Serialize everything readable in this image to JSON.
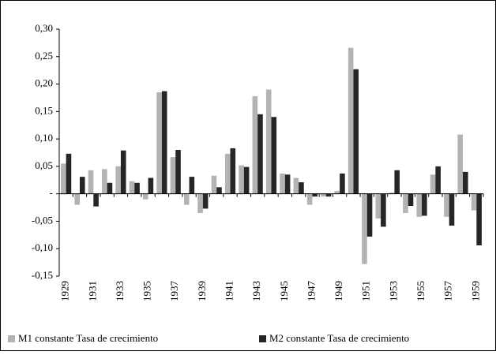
{
  "chart_data": {
    "type": "bar",
    "categories": [
      "1929",
      null,
      "1931",
      null,
      "1933",
      null,
      "1935",
      null,
      "1937",
      null,
      "1939",
      null,
      "1941",
      null,
      "1943",
      null,
      "1945",
      null,
      "1947",
      null,
      "1949",
      null,
      "1951",
      null,
      "1953",
      null,
      "1955",
      null,
      "1957",
      null,
      "1959"
    ],
    "series": [
      {
        "name": "M1 constante Tasa de crecimiento",
        "color": "#b3b3b3",
        "values": [
          0.055,
          -0.02,
          0.043,
          0.045,
          0.05,
          0.023,
          -0.01,
          0.185,
          0.067,
          -0.02,
          -0.035,
          0.033,
          0.073,
          0.052,
          0.178,
          0.19,
          0.037,
          0.029,
          -0.02,
          -0.005,
          0.005,
          0.266,
          -0.128,
          -0.045,
          0.002,
          -0.035,
          -0.042,
          0.035,
          -0.042,
          0.108,
          -0.03
        ]
      },
      {
        "name": "M2 constante Tasa de crecimiento",
        "color": "#262626",
        "values": [
          0.073,
          0.031,
          -0.023,
          0.02,
          0.079,
          0.02,
          0.029,
          0.187,
          0.08,
          0.031,
          -0.027,
          0.012,
          0.083,
          0.049,
          0.145,
          0.14,
          0.035,
          0.021,
          -0.005,
          -0.005,
          0.037,
          0.227,
          -0.078,
          -0.06,
          0.043,
          -0.022,
          -0.04,
          0.05,
          -0.058,
          0.04,
          -0.094
        ]
      }
    ],
    "ylim": [
      -0.15,
      0.3
    ],
    "yticks": [
      {
        "value": -0.15,
        "label": "-0,15"
      },
      {
        "value": -0.1,
        "label": "-0,10"
      },
      {
        "value": -0.05,
        "label": "-0,05"
      },
      {
        "value": 0,
        "label": "-"
      },
      {
        "value": 0.05,
        "label": "0,05"
      },
      {
        "value": 0.1,
        "label": "0,10"
      },
      {
        "value": 0.15,
        "label": "0,15"
      },
      {
        "value": 0.2,
        "label": "0,20"
      },
      {
        "value": 0.25,
        "label": "0,25"
      },
      {
        "value": 0.3,
        "label": "0,30"
      }
    ],
    "grid": false,
    "legend": "bottom"
  }
}
